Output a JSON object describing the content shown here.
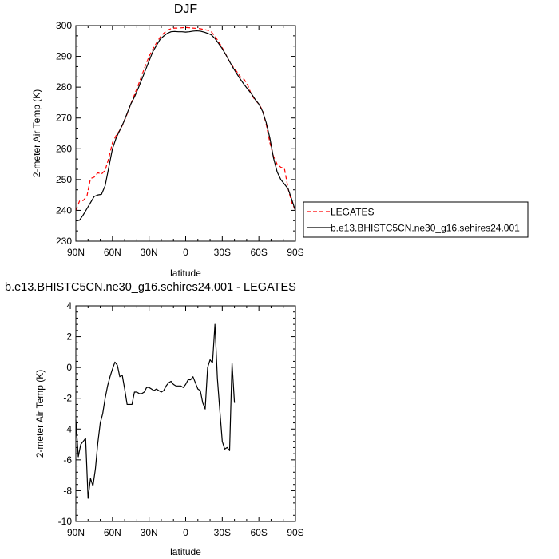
{
  "chart_data": [
    {
      "type": "line",
      "title": "DJF",
      "xlabel": "latitude",
      "ylabel": "2-meter Air Temp (K)",
      "xlim": [
        90,
        -90
      ],
      "ylim": [
        230,
        300
      ],
      "x_tick_values": [
        90,
        60,
        30,
        0,
        -30,
        -60,
        -90
      ],
      "x_tick_labels": [
        "90N",
        "60N",
        "30N",
        "0",
        "30S",
        "60S",
        "90S"
      ],
      "y_tick_values": [
        230,
        240,
        250,
        260,
        270,
        280,
        290,
        300
      ],
      "y_tick_labels": [
        "230",
        "240",
        "250",
        "260",
        "270",
        "280",
        "290",
        "300"
      ],
      "legend": {
        "placement": "right"
      },
      "series": [
        {
          "name": "LEGATES",
          "color": "#ff0000",
          "dash": "dashed",
          "points": [
            [
              90,
              240
            ],
            [
              87,
              243
            ],
            [
              84,
              243.2
            ],
            [
              81,
              244.5
            ],
            [
              78,
              250.3
            ],
            [
              75,
              250.8
            ],
            [
              72,
              252.2
            ],
            [
              69,
              251.8
            ],
            [
              66,
              253
            ],
            [
              63,
              257
            ],
            [
              60,
              262
            ],
            [
              57,
              264.3
            ],
            [
              54,
              266
            ],
            [
              51,
              268.3
            ],
            [
              48,
              271.3
            ],
            [
              45,
              274.5
            ],
            [
              42,
              277.5
            ],
            [
              39,
              280.5
            ],
            [
              36,
              283.8
            ],
            [
              33,
              287
            ],
            [
              30,
              290
            ],
            [
              27,
              292.3
            ],
            [
              24,
              294.3
            ],
            [
              21,
              296.2
            ],
            [
              18,
              297.5
            ],
            [
              15,
              298.5
            ],
            [
              12,
              299
            ],
            [
              9,
              299.2
            ],
            [
              6,
              299.2
            ],
            [
              3,
              299.3
            ],
            [
              0,
              299.4
            ],
            [
              -3,
              299.3
            ],
            [
              -6,
              299.2
            ],
            [
              -9,
              299.1
            ],
            [
              -12,
              299.0
            ],
            [
              -15,
              298.7
            ],
            [
              -18,
              298.5
            ],
            [
              -21,
              298
            ],
            [
              -24,
              296.5
            ],
            [
              -27,
              294.8
            ],
            [
              -30,
              292.8
            ],
            [
              -33,
              290.5
            ],
            [
              -36,
              288.3
            ],
            [
              -39,
              286.5
            ],
            [
              -42,
              285
            ],
            [
              -45,
              283.3
            ],
            [
              -48,
              282.5
            ],
            [
              -51,
              280.5
            ],
            [
              -54,
              277.5
            ],
            [
              -57,
              275.8
            ],
            [
              -60,
              274.5
            ],
            [
              -63,
              272.5
            ],
            [
              -66,
              268
            ],
            [
              -69,
              262
            ],
            [
              -72,
              257.5
            ],
            [
              -75,
              255
            ],
            [
              -78,
              254
            ],
            [
              -81,
              253.5
            ],
            [
              -84,
              247
            ],
            [
              -87,
              242.5
            ],
            [
              -90,
              240
            ]
          ]
        },
        {
          "name": "b.e13.BHISTC5CN.ne30_g16.sehires24.001",
          "color": "#000000",
          "dash": "solid",
          "points": [
            [
              90,
              236.6
            ],
            [
              87,
              236.8
            ],
            [
              84,
              238.5
            ],
            [
              81,
              240.5
            ],
            [
              78,
              242.5
            ],
            [
              75,
              244.5
            ],
            [
              72,
              245
            ],
            [
              69,
              245.2
            ],
            [
              66,
              248
            ],
            [
              63,
              254
            ],
            [
              60,
              260
            ],
            [
              57,
              263.5
            ],
            [
              54,
              266
            ],
            [
              51,
              268.5
            ],
            [
              48,
              271.5
            ],
            [
              45,
              274.5
            ],
            [
              42,
              276.8
            ],
            [
              39,
              279.5
            ],
            [
              36,
              282.5
            ],
            [
              33,
              285.5
            ],
            [
              30,
              288.5
            ],
            [
              27,
              291.5
            ],
            [
              24,
              293.5
            ],
            [
              21,
              295.5
            ],
            [
              18,
              296.6
            ],
            [
              15,
              297.5
            ],
            [
              12,
              298
            ],
            [
              9,
              298.1
            ],
            [
              6,
              298
            ],
            [
              3,
              298
            ],
            [
              0,
              297.9
            ],
            [
              -3,
              298
            ],
            [
              -6,
              298.2
            ],
            [
              -9,
              298.3
            ],
            [
              -12,
              298.2
            ],
            [
              -15,
              297.9
            ],
            [
              -18,
              297.5
            ],
            [
              -21,
              297
            ],
            [
              -24,
              295.8
            ],
            [
              -27,
              294.2
            ],
            [
              -30,
              292.5
            ],
            [
              -33,
              290.5
            ],
            [
              -36,
              288.3
            ],
            [
              -39,
              286.2
            ],
            [
              -42,
              284.3
            ],
            [
              -45,
              282.5
            ],
            [
              -48,
              280.8
            ],
            [
              -51,
              279.3
            ],
            [
              -54,
              277.8
            ],
            [
              -57,
              276
            ],
            [
              -60,
              274.5
            ],
            [
              -63,
              272.2
            ],
            [
              -66,
              268.5
            ],
            [
              -69,
              263.5
            ],
            [
              -72,
              257
            ],
            [
              -75,
              252.5
            ],
            [
              -78,
              250
            ],
            [
              -81,
              248.5
            ],
            [
              -84,
              247
            ],
            [
              -87,
              243.5
            ],
            [
              -90,
              239.8
            ]
          ]
        }
      ]
    },
    {
      "type": "line",
      "title": "b.e13.BHISTC5CN.ne30_g16.sehires24.001 - LEGATES",
      "xlabel": "latitude",
      "ylabel": "2-meter Air Temp (K)",
      "xlim": [
        90,
        -90
      ],
      "ylim": [
        -10,
        4
      ],
      "x_tick_values": [
        90,
        60,
        30,
        0,
        -30,
        -60,
        -90
      ],
      "x_tick_labels": [
        "90N",
        "60N",
        "30N",
        "0",
        "30S",
        "60S",
        "90S"
      ],
      "y_tick_values": [
        -10,
        -8,
        -6,
        -4,
        -2,
        0,
        2,
        4
      ],
      "y_tick_labels": [
        "-10",
        "-8",
        "-6",
        "-4",
        "-2",
        "0",
        "2",
        "4"
      ],
      "series": [
        {
          "color": "#000000",
          "dash": "solid",
          "points": [
            [
              90,
              -3.4
            ],
            [
              88,
              -5.8
            ],
            [
              86,
              -5.0
            ],
            [
              84,
              -4.8
            ],
            [
              82,
              -4.6
            ],
            [
              80,
              -8.5
            ],
            [
              78,
              -7.2
            ],
            [
              76,
              -7.7
            ],
            [
              74,
              -6.6
            ],
            [
              72,
              -4.9
            ],
            [
              70,
              -3.6
            ],
            [
              68,
              -3.0
            ],
            [
              66,
              -2.0
            ],
            [
              64,
              -1.2
            ],
            [
              62,
              -0.6
            ],
            [
              60,
              -0.1
            ],
            [
              58,
              0.35
            ],
            [
              56,
              0.15
            ],
            [
              54,
              -0.6
            ],
            [
              52,
              -0.5
            ],
            [
              50,
              -1.4
            ],
            [
              48,
              -2.4
            ],
            [
              46,
              -2.4
            ],
            [
              44,
              -2.4
            ],
            [
              42,
              -1.6
            ],
            [
              40,
              -1.6
            ],
            [
              38,
              -1.7
            ],
            [
              36,
              -1.7
            ],
            [
              34,
              -1.6
            ],
            [
              32,
              -1.3
            ],
            [
              30,
              -1.3
            ],
            [
              28,
              -1.4
            ],
            [
              26,
              -1.5
            ],
            [
              24,
              -1.4
            ],
            [
              22,
              -1.5
            ],
            [
              20,
              -1.6
            ],
            [
              18,
              -1.5
            ],
            [
              16,
              -1.2
            ],
            [
              14,
              -1.0
            ],
            [
              12,
              -0.9
            ],
            [
              10,
              -1.1
            ],
            [
              8,
              -1.2
            ],
            [
              6,
              -1.2
            ],
            [
              4,
              -1.2
            ],
            [
              2,
              -1.3
            ],
            [
              0,
              -1.1
            ],
            [
              -2,
              -0.8
            ],
            [
              -4,
              -0.8
            ],
            [
              -6,
              -0.6
            ],
            [
              -8,
              -1.0
            ],
            [
              -10,
              -1.4
            ],
            [
              -12,
              -1.5
            ],
            [
              -14,
              -2.3
            ],
            [
              -16,
              -2.7
            ],
            [
              -18,
              0.0
            ],
            [
              -20,
              0.5
            ],
            [
              -22,
              0.3
            ],
            [
              -24,
              2.8
            ],
            [
              -26,
              -0.7
            ],
            [
              -28,
              -2.8
            ],
            [
              -30,
              -4.8
            ],
            [
              -32,
              -5.3
            ],
            [
              -34,
              -5.2
            ],
            [
              -36,
              -5.4
            ],
            [
              -38,
              0.3
            ],
            [
              -40,
              -2.3
            ]
          ]
        }
      ]
    }
  ]
}
